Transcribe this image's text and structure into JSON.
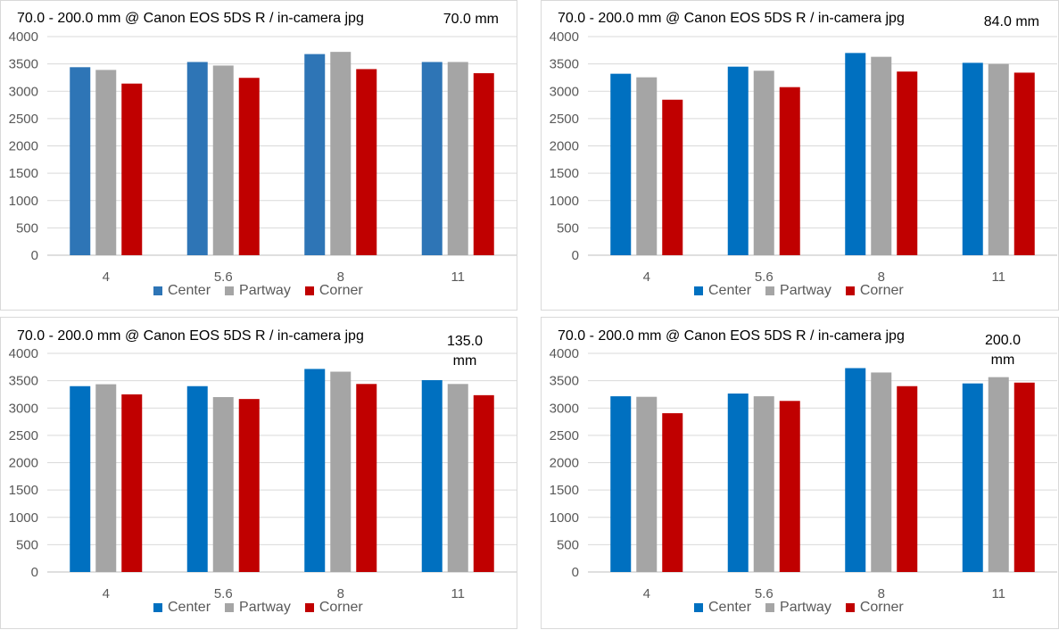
{
  "chart_data": [
    {
      "type": "bar",
      "title": "70.0 - 200.0 mm @  Canon EOS 5DS R  /  in-camera jpg",
      "focal_label": "70.0 mm",
      "categories": [
        "4",
        "5.6",
        "8",
        "11"
      ],
      "ylim": [
        0,
        4000
      ],
      "yticks": [
        "4000",
        "3500",
        "3000",
        "2500",
        "2000",
        "1500",
        "1000",
        "500",
        "0"
      ],
      "grid": true,
      "legend_position": "bottom",
      "series": [
        {
          "name": "Center",
          "color": "#2e75b6",
          "values": [
            3440,
            3535,
            3680,
            3535
          ]
        },
        {
          "name": "Partway",
          "color": "#a5a5a5",
          "values": [
            3390,
            3470,
            3720,
            3535
          ]
        },
        {
          "name": "Corner",
          "color": "#c00000",
          "values": [
            3140,
            3245,
            3405,
            3330
          ]
        }
      ]
    },
    {
      "type": "bar",
      "title": "70.0 - 200.0 mm @  Canon EOS 5DS R  /  in-camera jpg",
      "focal_label": "84.0 mm",
      "categories": [
        "4",
        "5.6",
        "8",
        "11"
      ],
      "ylim": [
        0,
        4000
      ],
      "yticks": [
        "4000",
        "3500",
        "3000",
        "2500",
        "2000",
        "1500",
        "1000",
        "500",
        "0"
      ],
      "grid": true,
      "legend_position": "bottom",
      "series": [
        {
          "name": "Center",
          "color": "#0070c0",
          "values": [
            3320,
            3450,
            3700,
            3520
          ]
        },
        {
          "name": "Partway",
          "color": "#a5a5a5",
          "values": [
            3255,
            3375,
            3630,
            3500
          ]
        },
        {
          "name": "Corner",
          "color": "#c00000",
          "values": [
            2845,
            3075,
            3360,
            3340
          ]
        }
      ]
    },
    {
      "type": "bar",
      "title": "70.0 - 200.0 mm @  Canon EOS 5DS R  /  in-camera jpg",
      "focal_label": "135.0 mm",
      "categories": [
        "4",
        "5.6",
        "8",
        "11"
      ],
      "ylim": [
        0,
        4000
      ],
      "yticks": [
        "4000",
        "3500",
        "3000",
        "2500",
        "2000",
        "1500",
        "1000",
        "500",
        "0"
      ],
      "grid": true,
      "legend_position": "bottom",
      "series": [
        {
          "name": "Center",
          "color": "#0070c0",
          "values": [
            3400,
            3400,
            3715,
            3510
          ]
        },
        {
          "name": "Partway",
          "color": "#a5a5a5",
          "values": [
            3435,
            3200,
            3665,
            3440
          ]
        },
        {
          "name": "Corner",
          "color": "#c00000",
          "values": [
            3250,
            3165,
            3440,
            3235
          ]
        }
      ]
    },
    {
      "type": "bar",
      "title": "70.0 - 200.0 mm @  Canon EOS 5DS R  /  in-camera jpg",
      "focal_label": "200.0 mm",
      "categories": [
        "4",
        "5.6",
        "8",
        "11"
      ],
      "ylim": [
        0,
        4000
      ],
      "yticks": [
        "4000",
        "3500",
        "3000",
        "2500",
        "2000",
        "1500",
        "1000",
        "500",
        "0"
      ],
      "grid": true,
      "legend_position": "bottom",
      "series": [
        {
          "name": "Center",
          "color": "#0070c0",
          "values": [
            3215,
            3265,
            3730,
            3450
          ]
        },
        {
          "name": "Partway",
          "color": "#a5a5a5",
          "values": [
            3205,
            3215,
            3650,
            3565
          ]
        },
        {
          "name": "Corner",
          "color": "#c00000",
          "values": [
            2905,
            3130,
            3400,
            3465
          ]
        }
      ]
    }
  ]
}
